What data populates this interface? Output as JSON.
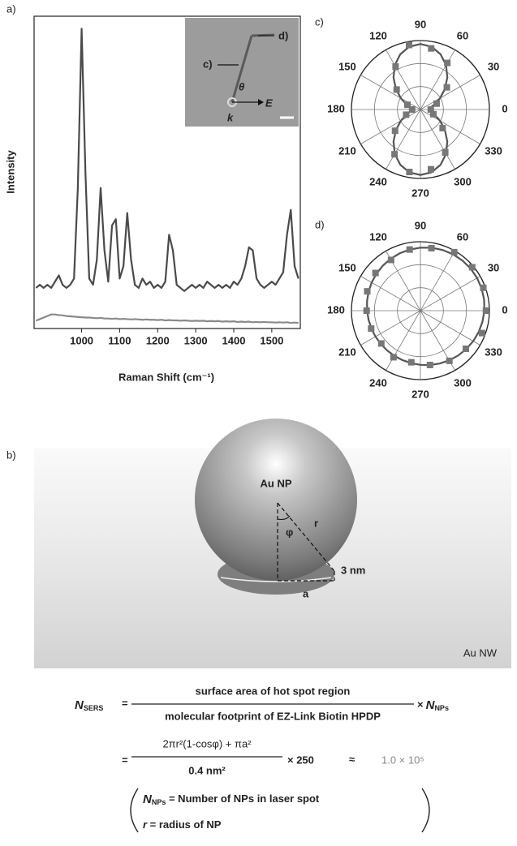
{
  "chart_data": [
    {
      "type": "line",
      "panel_label": "a)",
      "xlabel": "Raman Shift (cm⁻¹)",
      "ylabel": "Intensity",
      "x": [
        880,
        890,
        900,
        910,
        920,
        930,
        940,
        950,
        960,
        970,
        980,
        990,
        1000,
        1010,
        1020,
        1030,
        1040,
        1050,
        1060,
        1070,
        1080,
        1090,
        1100,
        1110,
        1120,
        1130,
        1140,
        1150,
        1160,
        1170,
        1180,
        1190,
        1200,
        1210,
        1220,
        1230,
        1240,
        1250,
        1260,
        1270,
        1280,
        1290,
        1300,
        1310,
        1320,
        1330,
        1340,
        1350,
        1360,
        1370,
        1380,
        1390,
        1400,
        1410,
        1420,
        1430,
        1440,
        1450,
        1460,
        1470,
        1480,
        1490,
        1500,
        1510,
        1520,
        1530,
        1540,
        1550,
        1560,
        1570
      ],
      "series": [
        {
          "color": "#4a4a4a",
          "values": [
            13,
            14,
            13,
            14,
            13,
            15,
            17,
            14,
            13,
            14,
            16,
            45,
            96,
            50,
            16,
            14,
            22,
            45,
            25,
            15,
            33,
            35,
            16,
            20,
            37,
            22,
            14,
            13,
            16,
            14,
            15,
            13,
            14,
            13,
            15,
            30,
            25,
            14,
            13,
            12,
            13,
            14,
            13,
            14,
            13,
            15,
            14,
            13,
            14,
            13,
            14,
            13,
            15,
            14,
            16,
            20,
            26,
            25,
            16,
            14,
            13,
            14,
            15,
            14,
            16,
            18,
            30,
            38,
            20,
            16
          ]
        },
        {
          "color": "#8a8a8a",
          "values": [
            2.5,
            3,
            3.5,
            4,
            4.5,
            4.5,
            4.3,
            4.2,
            4,
            3.9,
            3.8,
            3.7,
            3.6,
            3.5,
            3.5,
            3.4,
            3.3,
            3.4,
            3.2,
            3.2,
            3.1,
            3.2,
            3.0,
            3.1,
            3.0,
            2.9,
            3.0,
            2.9,
            2.8,
            2.9,
            2.8,
            2.8,
            2.7,
            2.8,
            2.6,
            2.7,
            2.6,
            2.6,
            2.5,
            2.6,
            2.5,
            2.4,
            2.5,
            2.4,
            2.5,
            2.3,
            2.4,
            2.3,
            2.4,
            2.2,
            2.3,
            2.2,
            2.3,
            2.1,
            2.2,
            2.1,
            2.2,
            2.0,
            2.1,
            2.0,
            2.1,
            2.0,
            2.0,
            1.9,
            2.0,
            1.9,
            2.0,
            1.8,
            1.9,
            1.8
          ]
        }
      ],
      "xlim": [
        875,
        1575
      ],
      "xticks": [
        1000,
        1100,
        1200,
        1300,
        1400,
        1500
      ],
      "ylim": [
        0,
        100
      ],
      "inset": {
        "wire_c": "c)",
        "wire_d": "d)",
        "angle": "θ",
        "field": "E",
        "wavevector": "k"
      }
    },
    {
      "type": "polar",
      "panel_label": "c)",
      "rlim": [
        0,
        1
      ],
      "angle_ticks": [
        0,
        30,
        60,
        90,
        120,
        150,
        180,
        210,
        240,
        270,
        300,
        330
      ],
      "series": [
        {
          "kind": "line",
          "color": "#555555",
          "theta": [
            0,
            10,
            20,
            30,
            40,
            50,
            60,
            70,
            80,
            90,
            100,
            110,
            120,
            130,
            140,
            150,
            160,
            170,
            180,
            190,
            200,
            210,
            220,
            230,
            240,
            250,
            260,
            270,
            280,
            290,
            300,
            310,
            320,
            330,
            340,
            350
          ],
          "values": [
            0.12,
            0.145,
            0.217,
            0.328,
            0.463,
            0.607,
            0.743,
            0.853,
            0.925,
            0.95,
            0.925,
            0.853,
            0.743,
            0.607,
            0.463,
            0.328,
            0.217,
            0.145,
            0.12,
            0.145,
            0.217,
            0.328,
            0.463,
            0.607,
            0.743,
            0.853,
            0.925,
            0.95,
            0.925,
            0.853,
            0.743,
            0.607,
            0.463,
            0.328,
            0.217,
            0.145
          ]
        },
        {
          "kind": "markers",
          "color": "#777777",
          "theta": [
            0,
            20,
            40,
            60,
            80,
            100,
            120,
            140,
            160,
            180,
            200,
            220,
            240,
            260,
            280,
            300,
            320,
            340
          ],
          "values": [
            0.15,
            0.25,
            0.5,
            0.78,
            0.9,
            0.95,
            0.72,
            0.45,
            0.2,
            0.12,
            0.22,
            0.48,
            0.75,
            0.92,
            0.88,
            0.72,
            0.42,
            0.2
          ]
        }
      ]
    },
    {
      "type": "polar",
      "panel_label": "d)",
      "rlim": [
        0,
        1
      ],
      "angle_ticks": [
        0,
        30,
        60,
        90,
        120,
        150,
        180,
        210,
        240,
        270,
        300,
        330
      ],
      "series": [
        {
          "kind": "line",
          "color": "#555555",
          "theta": [
            0,
            10,
            20,
            30,
            40,
            50,
            60,
            70,
            80,
            90,
            100,
            110,
            120,
            130,
            140,
            150,
            160,
            170,
            180,
            190,
            200,
            210,
            220,
            230,
            240,
            250,
            260,
            270,
            280,
            290,
            300,
            310,
            320,
            330,
            340,
            350
          ],
          "values": [
            0.927,
            0.937,
            0.944,
            0.948,
            0.95,
            0.948,
            0.944,
            0.937,
            0.927,
            0.914,
            0.9,
            0.884,
            0.867,
            0.85,
            0.833,
            0.816,
            0.8,
            0.786,
            0.773,
            0.763,
            0.756,
            0.752,
            0.75,
            0.752,
            0.756,
            0.763,
            0.773,
            0.786,
            0.8,
            0.816,
            0.833,
            0.85,
            0.867,
            0.884,
            0.9,
            0.914
          ]
        },
        {
          "kind": "markers",
          "color": "#777777",
          "theta": [
            0,
            20,
            40,
            60,
            80,
            100,
            120,
            140,
            160,
            180,
            200,
            220,
            240,
            260,
            280,
            300,
            320,
            340
          ],
          "values": [
            0.95,
            0.97,
            0.98,
            0.98,
            0.92,
            0.9,
            0.85,
            0.85,
            0.82,
            0.78,
            0.76,
            0.74,
            0.78,
            0.76,
            0.8,
            0.84,
            0.86,
            0.95
          ]
        }
      ]
    }
  ],
  "diagram": {
    "panel_label": "b)",
    "particle": "Au NP",
    "angle": "φ",
    "radius": "r",
    "gap": "3 nm",
    "contact": "a",
    "wire": "Au NW"
  },
  "equation": {
    "lhs": {
      "symbol": "N",
      "sub": "SERS"
    },
    "equals": "=",
    "numerator": "surface area of hot spot region",
    "denominator": "molecular footprint of EZ-Link Biotin HPDP",
    "factor": {
      "times": "×",
      "symbol": "N",
      "sub": "NPs"
    },
    "line2": {
      "equals": "=",
      "numerator": "2πr²(1-cosφ) + πa²",
      "denominator": "0.4 nm²",
      "factor": "× 250",
      "approx": "≈",
      "result": "1.0 × 10⁵"
    },
    "legend": {
      "line1": {
        "symbol": "N",
        "sub": "NPs",
        "text": " = Number of NPs in laser spot"
      },
      "line2": {
        "symbol": "r",
        "text": " = radius of NP"
      }
    }
  }
}
